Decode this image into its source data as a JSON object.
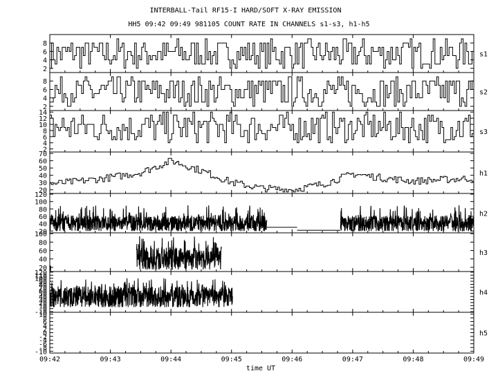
{
  "chart_data": {
    "type": "line",
    "title": "INTERBALL-Tail RF15-I HARD/SOFT X-RAY EMISSION",
    "subtitle": "HH5 09:42 09:49 981105  COUNT RATE IN CHANNELS s1-s3, h1-h5",
    "xlabel": "time UT",
    "x_ticks": [
      "09:42",
      "09:43",
      "09:44",
      "09:45",
      "09:46",
      "09:47",
      "09:48",
      "09:49"
    ],
    "xlim": [
      "09:42",
      "09:49"
    ],
    "grid": false,
    "panels": [
      {
        "name": "s1",
        "ylim": [
          1,
          10
        ],
        "y_ticks": [
          2,
          4,
          6,
          8
        ],
        "series": [
          {
            "style": "step",
            "start": "09:42",
            "end": "09:49",
            "min": 2,
            "max": 9,
            "mean": 5
          }
        ]
      },
      {
        "name": "s2",
        "ylim": [
          1,
          10
        ],
        "y_ticks": [
          2,
          4,
          6,
          8
        ],
        "series": [
          {
            "style": "step",
            "start": "09:42",
            "end": "09:49",
            "min": 2,
            "max": 9,
            "mean": 6
          }
        ]
      },
      {
        "name": "s3",
        "ylim": [
          1,
          14.5
        ],
        "y_ticks": [
          2,
          4,
          6,
          8,
          10,
          12,
          14
        ],
        "series": [
          {
            "style": "step",
            "start": "09:42",
            "end": "09:49",
            "min": 4,
            "max": 14,
            "mean": 8
          }
        ]
      },
      {
        "name": "h1",
        "ylim": [
          15,
          72
        ],
        "y_ticks": [
          20,
          30,
          40,
          50,
          60,
          70
        ],
        "series": [
          {
            "style": "step",
            "segments": [
              [
                "09:42",
                28
              ],
              [
                "09:42:30",
                32
              ],
              [
                "09:43",
                37
              ],
              [
                "09:43:30",
                44
              ],
              [
                "09:44",
                60
              ],
              [
                "09:44:30",
                46
              ],
              [
                "09:45",
                30
              ],
              [
                "09:45:30",
                22
              ],
              [
                "09:46",
                20
              ],
              [
                "09:46:30",
                28
              ],
              [
                "09:47",
                42
              ],
              [
                "09:47:30",
                36
              ],
              [
                "09:48",
                32
              ],
              [
                "09:48:30",
                34
              ],
              [
                "09:49",
                36
              ]
            ]
          }
        ]
      },
      {
        "name": "h2",
        "ylim": [
          15,
          122
        ],
        "y_ticks": [
          20,
          40,
          60,
          80,
          100,
          120
        ],
        "series": [
          {
            "style": "dense",
            "start": "09:42",
            "end": "09:45:35",
            "min": 20,
            "max": 90,
            "mean": 40
          },
          {
            "style": "flat",
            "start": "09:45:35",
            "end": "09:46:05",
            "value": 30
          },
          {
            "style": "flat",
            "start": "09:46:05",
            "end": "09:46:48",
            "value": 22
          },
          {
            "style": "dense",
            "start": "09:46:48",
            "end": "09:49",
            "min": 20,
            "max": 90,
            "mean": 40
          }
        ]
      },
      {
        "name": "h3",
        "ylim": [
          10,
          102
        ],
        "y_ticks": [
          20,
          40,
          60,
          80,
          100
        ],
        "series": [
          {
            "style": "dense",
            "start": "09:42",
            "end": "09:42:01",
            "min": 12,
            "max": 30,
            "mean": 20
          },
          {
            "style": "dense",
            "start": "09:43:26",
            "end": "09:44:50",
            "min": 15,
            "max": 95,
            "mean": 40
          }
        ]
      },
      {
        "name": "h4",
        "ylim": [
          -12,
          122
        ],
        "y_ticks": [
          -10,
          0,
          10,
          20,
          30,
          40,
          50,
          60,
          70,
          80,
          90,
          100,
          110,
          120
        ],
        "series": [
          {
            "style": "dense",
            "start": "09:42",
            "end": "09:45:01",
            "min": 5,
            "max": 100,
            "mean": 38
          }
        ]
      },
      {
        "name": "h5",
        "ylim": [
          -11,
          11
        ],
        "y_ticks": [
          -10,
          -8,
          -6,
          -4,
          -2,
          0,
          2,
          4,
          6,
          8,
          10
        ],
        "series": []
      }
    ]
  }
}
